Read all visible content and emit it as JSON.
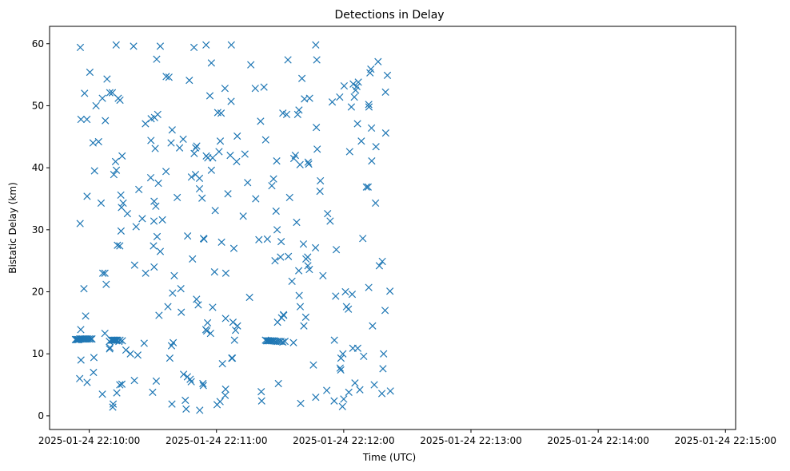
{
  "chart_data": {
    "type": "scatter",
    "title": "Detections in Delay",
    "xlabel": "Time (UTC)",
    "ylabel": "Bistatic Delay (km)",
    "x_unit": "seconds",
    "x_ticks": [
      {
        "value": 60,
        "label": "2025-01-24 22:10:00"
      },
      {
        "value": 120,
        "label": "2025-01-24 22:11:00"
      },
      {
        "value": 180,
        "label": "2025-01-24 22:12:00"
      },
      {
        "value": 240,
        "label": "2025-01-24 22:13:00"
      },
      {
        "value": 300,
        "label": "2025-01-24 22:14:00"
      },
      {
        "value": 360,
        "label": "2025-01-24 22:15:00"
      }
    ],
    "y_ticks": [
      {
        "value": 0,
        "label": "0"
      },
      {
        "value": 10,
        "label": "10"
      },
      {
        "value": 20,
        "label": "20"
      },
      {
        "value": 30,
        "label": "30"
      },
      {
        "value": 40,
        "label": "40"
      },
      {
        "value": 50,
        "label": "50"
      },
      {
        "value": 60,
        "label": "60"
      }
    ],
    "xlim": [
      41.3,
      364.8
    ],
    "ylim": [
      -2.2,
      62.8
    ],
    "marker": "x",
    "color": "#1f77b4",
    "grid": false,
    "points": [
      [
        53.5,
        12.3
      ],
      [
        53.9,
        12.3
      ],
      [
        54.3,
        12.3
      ],
      [
        54.7,
        12.3
      ],
      [
        55.1,
        12.3
      ],
      [
        55.5,
        12.4
      ],
      [
        55.9,
        12.4
      ],
      [
        56.4,
        12.4
      ],
      [
        56.9,
        12.4
      ],
      [
        57.5,
        12.4
      ],
      [
        58.1,
        12.4
      ],
      [
        58.7,
        12.4
      ],
      [
        59.3,
        12.4
      ],
      [
        60.0,
        12.4
      ],
      [
        60.7,
        12.4
      ],
      [
        61.3,
        12.4
      ],
      [
        55.8,
        59.4
      ],
      [
        57.8,
        52.0
      ],
      [
        56.1,
        47.8
      ],
      [
        58.9,
        47.8
      ],
      [
        60.3,
        55.4
      ],
      [
        61.8,
        44.0
      ],
      [
        63.2,
        50.0
      ],
      [
        64.4,
        44.2
      ],
      [
        59.0,
        35.4
      ],
      [
        55.7,
        31.0
      ],
      [
        62.5,
        39.5
      ],
      [
        57.5,
        20.5
      ],
      [
        58.3,
        16.1
      ],
      [
        56.0,
        13.9
      ],
      [
        56.1,
        9.0
      ],
      [
        55.5,
        6.0
      ],
      [
        59.0,
        5.4
      ],
      [
        62.2,
        9.4
      ],
      [
        62.0,
        7.0
      ],
      [
        66.2,
        3.5
      ],
      [
        66.2,
        51.2
      ],
      [
        68.4,
        54.3
      ],
      [
        69.7,
        52.1
      ],
      [
        70.9,
        52.1
      ],
      [
        73.7,
        51.2
      ],
      [
        74.5,
        50.9
      ],
      [
        67.6,
        47.6
      ],
      [
        65.6,
        34.3
      ],
      [
        66.4,
        23.0
      ],
      [
        67.4,
        23.0
      ],
      [
        68.0,
        21.2
      ],
      [
        67.4,
        13.3
      ],
      [
        69.5,
        12.0
      ],
      [
        69.8,
        11.0
      ],
      [
        69.6,
        10.8
      ],
      [
        71.1,
        1.4
      ],
      [
        71.3,
        1.9
      ],
      [
        73.0,
        3.7
      ],
      [
        74.4,
        5.0
      ],
      [
        75.4,
        5.1
      ],
      [
        70.4,
        12.2
      ],
      [
        70.9,
        12.2
      ],
      [
        71.4,
        12.2
      ],
      [
        71.9,
        12.2
      ],
      [
        72.4,
        12.2
      ],
      [
        72.9,
        12.2
      ],
      [
        73.4,
        12.2
      ],
      [
        74.5,
        12.2
      ],
      [
        75.6,
        12.1
      ],
      [
        72.7,
        59.8
      ],
      [
        80.9,
        59.6
      ],
      [
        71.6,
        38.9
      ],
      [
        72.4,
        41.0
      ],
      [
        72.8,
        39.6
      ],
      [
        74.9,
        35.6
      ],
      [
        75.2,
        33.6
      ],
      [
        76.0,
        34.3
      ],
      [
        75.0,
        29.8
      ],
      [
        73.3,
        27.5
      ],
      [
        74.4,
        27.4
      ],
      [
        75.5,
        41.9
      ],
      [
        78.0,
        32.6
      ],
      [
        81.4,
        24.3
      ],
      [
        83.4,
        36.5
      ],
      [
        82.1,
        30.5
      ],
      [
        85.0,
        31.8
      ],
      [
        77.3,
        10.6
      ],
      [
        79.4,
        10.0
      ],
      [
        82.9,
        9.8
      ],
      [
        85.9,
        11.7
      ],
      [
        81.3,
        5.7
      ],
      [
        74.0,
        12.0
      ],
      [
        86.5,
        47.1
      ],
      [
        89.2,
        47.9
      ],
      [
        90.8,
        48.1
      ],
      [
        92.3,
        48.6
      ],
      [
        89.1,
        44.4
      ],
      [
        91.1,
        43.1
      ],
      [
        89.0,
        38.4
      ],
      [
        92.6,
        37.5
      ],
      [
        90.6,
        34.6
      ],
      [
        91.4,
        33.8
      ],
      [
        90.5,
        31.4
      ],
      [
        94.5,
        31.6
      ],
      [
        92.0,
        28.9
      ],
      [
        90.3,
        27.4
      ],
      [
        90.6,
        24.0
      ],
      [
        86.6,
        23.0
      ],
      [
        91.6,
        5.6
      ],
      [
        89.9,
        3.8
      ],
      [
        93.5,
        59.6
      ],
      [
        91.8,
        57.5
      ],
      [
        96.3,
        54.7
      ],
      [
        97.6,
        54.6
      ],
      [
        96.2,
        39.4
      ],
      [
        93.5,
        26.5
      ],
      [
        92.9,
        16.2
      ],
      [
        97.1,
        17.6
      ],
      [
        98.0,
        9.3
      ],
      [
        98.8,
        11.3
      ],
      [
        99.6,
        11.8
      ],
      [
        99.0,
        1.9
      ],
      [
        98.6,
        44.0
      ],
      [
        99.1,
        46.1
      ],
      [
        99.3,
        19.8
      ],
      [
        100.1,
        22.6
      ],
      [
        101.5,
        35.2
      ],
      [
        102.6,
        43.2
      ],
      [
        104.3,
        44.6
      ],
      [
        103.2,
        20.5
      ],
      [
        103.4,
        16.7
      ],
      [
        104.5,
        6.7
      ],
      [
        105.7,
        1.1
      ],
      [
        105.3,
        2.5
      ],
      [
        106.3,
        6.3
      ],
      [
        106.4,
        29.0
      ],
      [
        107.2,
        54.1
      ],
      [
        108.7,
        25.3
      ],
      [
        108.2,
        38.5
      ],
      [
        109.5,
        42.3
      ],
      [
        110.2,
        43.2
      ],
      [
        110.7,
        43.5
      ],
      [
        110.1,
        38.9
      ],
      [
        110.6,
        18.8
      ],
      [
        111.4,
        17.9
      ],
      [
        112.0,
        36.6
      ],
      [
        113.2,
        35.1
      ],
      [
        113.9,
        28.6
      ],
      [
        114.1,
        28.5
      ],
      [
        112.0,
        38.3
      ],
      [
        113.6,
        5.2
      ],
      [
        113.8,
        4.9
      ],
      [
        112.1,
        0.9
      ],
      [
        107.6,
        5.9
      ],
      [
        108.1,
        5.5
      ],
      [
        109.4,
        59.4
      ],
      [
        115.1,
        59.8
      ],
      [
        117.6,
        56.9
      ],
      [
        116.9,
        51.6
      ],
      [
        115.9,
        41.6
      ],
      [
        117.6,
        39.6
      ],
      [
        118.2,
        41.6
      ],
      [
        115.2,
        41.9
      ],
      [
        115.8,
        15.0
      ],
      [
        115.0,
        13.9
      ],
      [
        115.4,
        13.7
      ],
      [
        117.2,
        13.3
      ],
      [
        118.2,
        17.5
      ],
      [
        119.1,
        23.2
      ],
      [
        119.4,
        33.1
      ],
      [
        121.8,
        44.3
      ],
      [
        121.2,
        42.6
      ],
      [
        120.6,
        48.9
      ],
      [
        122.2,
        48.8
      ],
      [
        124.0,
        52.8
      ],
      [
        124.4,
        23.0
      ],
      [
        124.3,
        15.7
      ],
      [
        124.3,
        4.3
      ],
      [
        124.1,
        3.3
      ],
      [
        127.0,
        59.8
      ],
      [
        126.9,
        50.7
      ],
      [
        126.5,
        42.0
      ],
      [
        125.4,
        35.8
      ],
      [
        127.2,
        9.3
      ],
      [
        127.5,
        9.3
      ],
      [
        127.8,
        15.1
      ],
      [
        128.2,
        27.0
      ],
      [
        128.5,
        12.2
      ],
      [
        129.0,
        13.8
      ],
      [
        129.8,
        45.1
      ],
      [
        129.5,
        41.0
      ],
      [
        129.9,
        14.5
      ],
      [
        122.4,
        28.0
      ],
      [
        122.8,
        8.4
      ],
      [
        121.7,
        2.3
      ],
      [
        120.3,
        1.8
      ],
      [
        132.6,
        32.2
      ],
      [
        133.4,
        42.2
      ],
      [
        134.7,
        37.6
      ],
      [
        135.6,
        19.1
      ],
      [
        136.2,
        56.6
      ],
      [
        138.3,
        52.8
      ],
      [
        138.5,
        35.0
      ],
      [
        140.8,
        47.5
      ],
      [
        140.0,
        28.4
      ],
      [
        141.1,
        3.9
      ],
      [
        141.3,
        2.4
      ],
      [
        142.4,
        53.0
      ],
      [
        143.2,
        44.5
      ],
      [
        144.0,
        28.5
      ],
      [
        146.1,
        37.1
      ],
      [
        146.9,
        38.2
      ],
      [
        148.1,
        33.0
      ],
      [
        148.4,
        41.1
      ],
      [
        147.6,
        25.0
      ],
      [
        148.6,
        30.0
      ],
      [
        150.2,
        25.6
      ],
      [
        150.5,
        28.1
      ],
      [
        150.7,
        15.8
      ],
      [
        151.6,
        16.3
      ],
      [
        151.7,
        16.2
      ],
      [
        151.3,
        48.8
      ],
      [
        153.1,
        48.6
      ],
      [
        153.7,
        57.4
      ],
      [
        153.9,
        25.7
      ],
      [
        154.5,
        35.2
      ],
      [
        155.6,
        21.7
      ],
      [
        143.1,
        12.2
      ],
      [
        143.6,
        12.1
      ],
      [
        144.1,
        12.1
      ],
      [
        144.6,
        12.1
      ],
      [
        145.2,
        12.1
      ],
      [
        145.8,
        12.1
      ],
      [
        146.5,
        12.1
      ],
      [
        147.2,
        12.1
      ],
      [
        148.0,
        12.0
      ],
      [
        148.8,
        12.0
      ],
      [
        149.6,
        12.0
      ],
      [
        150.4,
        12.0
      ],
      [
        151.3,
        11.9
      ],
      [
        152.3,
        12.0
      ],
      [
        148.8,
        15.1
      ],
      [
        149.2,
        5.2
      ],
      [
        156.5,
        41.5
      ],
      [
        157.2,
        42.0
      ],
      [
        157.8,
        31.2
      ],
      [
        158.3,
        48.6
      ],
      [
        158.9,
        49.3
      ],
      [
        159.4,
        40.5
      ],
      [
        160.3,
        54.4
      ],
      [
        161.0,
        27.7
      ],
      [
        161.5,
        51.1
      ],
      [
        161.2,
        14.5
      ],
      [
        162.1,
        15.9
      ],
      [
        162.2,
        25.3
      ],
      [
        163.0,
        25.6
      ],
      [
        163.1,
        24.2
      ],
      [
        163.8,
        23.6
      ],
      [
        163.5,
        40.6
      ],
      [
        163.2,
        40.9
      ],
      [
        163.9,
        51.2
      ],
      [
        159.5,
        17.6
      ],
      [
        159.0,
        19.4
      ],
      [
        158.8,
        23.4
      ],
      [
        156.3,
        11.8
      ],
      [
        159.7,
        2.0
      ],
      [
        166.8,
        3.0
      ],
      [
        166.8,
        59.8
      ],
      [
        167.3,
        57.4
      ],
      [
        167.1,
        46.5
      ],
      [
        167.5,
        43.0
      ],
      [
        168.8,
        36.2
      ],
      [
        169.0,
        37.9
      ],
      [
        170.2,
        22.6
      ],
      [
        166.7,
        27.1
      ],
      [
        165.7,
        8.2
      ],
      [
        172.0,
        4.1
      ],
      [
        172.4,
        32.6
      ],
      [
        173.6,
        31.4
      ],
      [
        174.6,
        50.6
      ],
      [
        175.5,
        2.4
      ],
      [
        175.6,
        12.2
      ],
      [
        176.2,
        19.3
      ],
      [
        176.5,
        26.8
      ],
      [
        178.1,
        51.4
      ],
      [
        178.3,
        7.7
      ],
      [
        178.6,
        7.4
      ],
      [
        178.7,
        9.3
      ],
      [
        179.4,
        1.5
      ],
      [
        179.6,
        10.0
      ],
      [
        180.2,
        53.2
      ],
      [
        180.0,
        2.7
      ],
      [
        180.8,
        20.0
      ],
      [
        181.3,
        17.6
      ],
      [
        182.2,
        17.2
      ],
      [
        182.4,
        3.8
      ],
      [
        182.8,
        42.6
      ],
      [
        183.6,
        49.8
      ],
      [
        184.5,
        53.5
      ],
      [
        185.0,
        51.4
      ],
      [
        185.6,
        52.5
      ],
      [
        186.2,
        53.1
      ],
      [
        186.9,
        53.8
      ],
      [
        186.5,
        47.1
      ],
      [
        184.0,
        19.6
      ],
      [
        184.3,
        10.9
      ],
      [
        185.3,
        5.3
      ],
      [
        186.6,
        10.9
      ],
      [
        187.6,
        4.2
      ],
      [
        188.3,
        44.3
      ],
      [
        189.0,
        28.6
      ],
      [
        189.4,
        9.6
      ],
      [
        190.7,
        36.9
      ],
      [
        191.5,
        36.9
      ],
      [
        191.8,
        20.7
      ],
      [
        191.8,
        50.2
      ],
      [
        191.9,
        49.8
      ],
      [
        192.4,
        55.3
      ],
      [
        192.8,
        55.9
      ],
      [
        193.1,
        46.4
      ],
      [
        193.2,
        41.1
      ],
      [
        193.6,
        14.5
      ],
      [
        194.4,
        5.0
      ],
      [
        195.0,
        34.3
      ],
      [
        195.2,
        43.4
      ],
      [
        196.2,
        57.1
      ],
      [
        196.8,
        24.2
      ],
      [
        198.2,
        24.9
      ],
      [
        198.0,
        3.6
      ],
      [
        198.5,
        7.6
      ],
      [
        198.8,
        10.0
      ],
      [
        199.5,
        17.0
      ],
      [
        199.8,
        45.6
      ],
      [
        199.7,
        52.2
      ],
      [
        200.6,
        54.9
      ],
      [
        201.8,
        20.1
      ],
      [
        202.0,
        4.0
      ]
    ]
  }
}
